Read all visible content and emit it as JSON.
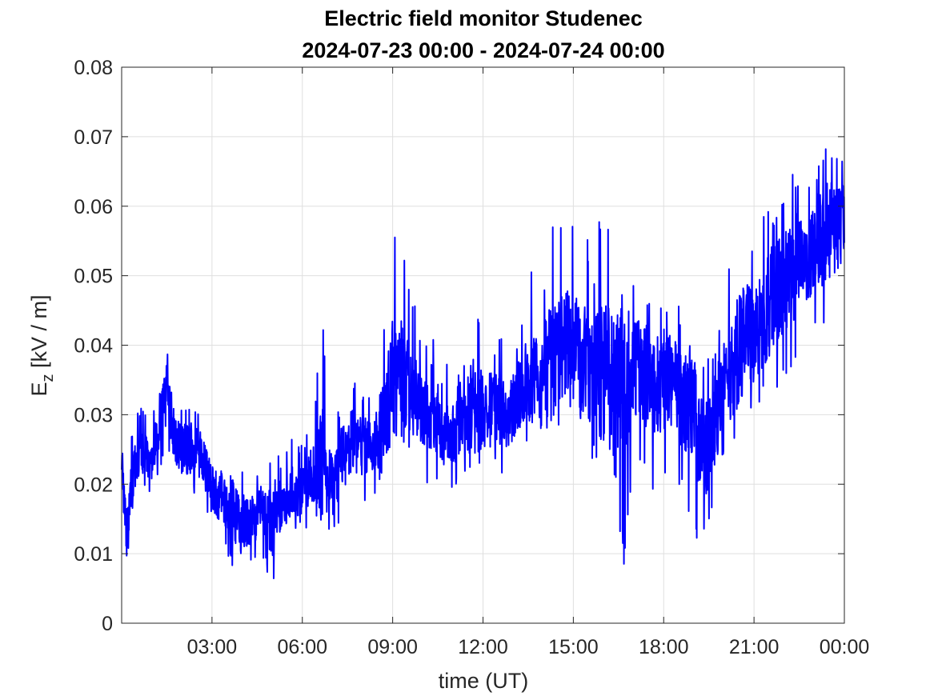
{
  "chart_data": {
    "type": "line",
    "title": "Electric field monitor Studenec",
    "subtitle": "2024-07-23 00:00 - 2024-07-24 00:00",
    "xlabel": "time (UT)",
    "ylabel_main": "E",
    "ylabel_sub": "z",
    "ylabel_units": " [kV / m]",
    "xlim": [
      "2024-07-23 00:00",
      "2024-07-24 00:00"
    ],
    "ylim": [
      0,
      0.08
    ],
    "xticks": [
      {
        "t": "2024-07-23 03:00",
        "label": "03:00"
      },
      {
        "t": "2024-07-23 06:00",
        "label": "06:00"
      },
      {
        "t": "2024-07-23 09:00",
        "label": "09:00"
      },
      {
        "t": "2024-07-23 12:00",
        "label": "12:00"
      },
      {
        "t": "2024-07-23 15:00",
        "label": "15:00"
      },
      {
        "t": "2024-07-23 18:00",
        "label": "18:00"
      },
      {
        "t": "2024-07-23 21:00",
        "label": "21:00"
      },
      {
        "t": "2024-07-24 00:00",
        "label": "00:00"
      }
    ],
    "yticks": [
      {
        "v": 0,
        "label": "0"
      },
      {
        "v": 0.01,
        "label": "0.01"
      },
      {
        "v": 0.02,
        "label": "0.02"
      },
      {
        "v": 0.03,
        "label": "0.03"
      },
      {
        "v": 0.04,
        "label": "0.04"
      },
      {
        "v": 0.05,
        "label": "0.05"
      },
      {
        "v": 0.06,
        "label": "0.06"
      },
      {
        "v": 0.07,
        "label": "0.07"
      },
      {
        "v": 0.08,
        "label": "0.08"
      }
    ],
    "grid": true,
    "series": [
      {
        "color": "#0000ff",
        "envelope": {
          "x": [
            "2024-07-23 00:00",
            "2024-07-23 00:10",
            "2024-07-23 00:20",
            "2024-07-23 00:30",
            "2024-07-23 00:45",
            "2024-07-23 01:00",
            "2024-07-23 01:15",
            "2024-07-23 01:30",
            "2024-07-23 01:45",
            "2024-07-23 02:00",
            "2024-07-23 02:20",
            "2024-07-23 02:40",
            "2024-07-23 03:00",
            "2024-07-23 03:20",
            "2024-07-23 03:40",
            "2024-07-23 04:00",
            "2024-07-23 04:20",
            "2024-07-23 04:40",
            "2024-07-23 05:00",
            "2024-07-23 05:20",
            "2024-07-23 05:40",
            "2024-07-23 06:00",
            "2024-07-23 06:20",
            "2024-07-23 06:40",
            "2024-07-23 07:00",
            "2024-07-23 07:20",
            "2024-07-23 07:40",
            "2024-07-23 08:00",
            "2024-07-23 08:20",
            "2024-07-23 08:40",
            "2024-07-23 09:00",
            "2024-07-23 09:20",
            "2024-07-23 09:40",
            "2024-07-23 10:00",
            "2024-07-23 10:20",
            "2024-07-23 10:40",
            "2024-07-23 11:00",
            "2024-07-23 11:20",
            "2024-07-23 11:40",
            "2024-07-23 12:00",
            "2024-07-23 12:20",
            "2024-07-23 12:40",
            "2024-07-23 13:00",
            "2024-07-23 13:20",
            "2024-07-23 13:40",
            "2024-07-23 14:00",
            "2024-07-23 14:20",
            "2024-07-23 14:40",
            "2024-07-23 15:00",
            "2024-07-23 15:20",
            "2024-07-23 15:40",
            "2024-07-23 16:00",
            "2024-07-23 16:20",
            "2024-07-23 16:40",
            "2024-07-23 17:00",
            "2024-07-23 17:20",
            "2024-07-23 17:40",
            "2024-07-23 18:00",
            "2024-07-23 18:20",
            "2024-07-23 18:40",
            "2024-07-23 19:00",
            "2024-07-23 19:20",
            "2024-07-23 19:40",
            "2024-07-23 20:00",
            "2024-07-23 20:20",
            "2024-07-23 20:40",
            "2024-07-23 21:00",
            "2024-07-23 21:20",
            "2024-07-23 21:40",
            "2024-07-23 22:00",
            "2024-07-23 22:20",
            "2024-07-23 22:40",
            "2024-07-23 23:00",
            "2024-07-23 23:20",
            "2024-07-23 23:40",
            "2024-07-24 00:00"
          ],
          "mean": [
            0.024,
            0.013,
            0.02,
            0.024,
            0.025,
            0.023,
            0.029,
            0.033,
            0.027,
            0.025,
            0.025,
            0.024,
            0.019,
            0.018,
            0.017,
            0.014,
            0.015,
            0.016,
            0.015,
            0.017,
            0.019,
            0.019,
            0.021,
            0.023,
            0.02,
            0.024,
            0.026,
            0.025,
            0.025,
            0.028,
            0.035,
            0.035,
            0.033,
            0.031,
            0.031,
            0.029,
            0.027,
            0.029,
            0.032,
            0.03,
            0.031,
            0.03,
            0.031,
            0.034,
            0.036,
            0.037,
            0.038,
            0.04,
            0.041,
            0.038,
            0.036,
            0.037,
            0.035,
            0.035,
            0.037,
            0.036,
            0.035,
            0.035,
            0.034,
            0.032,
            0.03,
            0.024,
            0.029,
            0.034,
            0.037,
            0.041,
            0.042,
            0.045,
            0.047,
            0.049,
            0.051,
            0.053,
            0.054,
            0.056,
            0.057,
            0.058
          ],
          "low": [
            0.02,
            0.007,
            0.015,
            0.018,
            0.02,
            0.018,
            0.022,
            0.025,
            0.02,
            0.018,
            0.018,
            0.018,
            0.012,
            0.011,
            0.008,
            0.005,
            0.008,
            0.009,
            0.005,
            0.011,
            0.012,
            0.014,
            0.013,
            0.014,
            0.012,
            0.015,
            0.017,
            0.017,
            0.018,
            0.02,
            0.025,
            0.025,
            0.024,
            0.02,
            0.02,
            0.019,
            0.019,
            0.021,
            0.023,
            0.02,
            0.022,
            0.021,
            0.022,
            0.025,
            0.027,
            0.028,
            0.025,
            0.03,
            0.031,
            0.026,
            0.023,
            0.025,
            0.021,
            0.006,
            0.024,
            0.021,
            0.017,
            0.02,
            0.022,
            0.018,
            0.009,
            0.013,
            0.016,
            0.023,
            0.025,
            0.028,
            0.028,
            0.031,
            0.033,
            0.035,
            0.037,
            0.039,
            0.04,
            0.043,
            0.045,
            0.047
          ],
          "high": [
            0.028,
            0.02,
            0.027,
            0.03,
            0.032,
            0.028,
            0.037,
            0.041,
            0.034,
            0.031,
            0.032,
            0.03,
            0.025,
            0.025,
            0.025,
            0.022,
            0.021,
            0.023,
            0.026,
            0.023,
            0.027,
            0.026,
            0.029,
            0.045,
            0.029,
            0.032,
            0.035,
            0.034,
            0.033,
            0.043,
            0.061,
            0.056,
            0.047,
            0.041,
            0.043,
            0.042,
            0.035,
            0.037,
            0.051,
            0.042,
            0.041,
            0.041,
            0.04,
            0.044,
            0.054,
            0.05,
            0.061,
            0.058,
            0.057,
            0.059,
            0.05,
            0.068,
            0.052,
            0.048,
            0.05,
            0.048,
            0.045,
            0.047,
            0.047,
            0.045,
            0.039,
            0.037,
            0.04,
            0.047,
            0.056,
            0.056,
            0.055,
            0.061,
            0.06,
            0.063,
            0.065,
            0.063,
            0.066,
            0.069,
            0.07,
            0.068
          ]
        }
      }
    ]
  }
}
